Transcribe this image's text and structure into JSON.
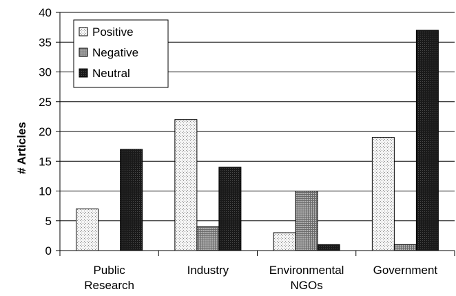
{
  "chart_data": {
    "type": "bar",
    "categories": [
      [
        "Public",
        "Research"
      ],
      [
        "Industry"
      ],
      [
        "Environmental",
        "NGOs"
      ],
      [
        "Government"
      ]
    ],
    "series": [
      {
        "name": "Positive",
        "values": [
          7,
          22,
          3,
          19
        ],
        "color": "#f2f2f2",
        "pattern": "dots-light"
      },
      {
        "name": "Negative",
        "values": [
          0,
          4,
          10,
          1
        ],
        "color": "#9a9a9a",
        "pattern": "crosshatch"
      },
      {
        "name": "Neutral",
        "values": [
          17,
          14,
          1,
          37
        ],
        "color": "#1e1e1e",
        "pattern": "dots-dark"
      }
    ],
    "ylabel": "# Articles",
    "xlabel": "",
    "ylim": [
      0,
      40
    ],
    "yticks": [
      0,
      5,
      10,
      15,
      20,
      25,
      30,
      35,
      40
    ],
    "grid": true,
    "legend_position": "top-left"
  }
}
